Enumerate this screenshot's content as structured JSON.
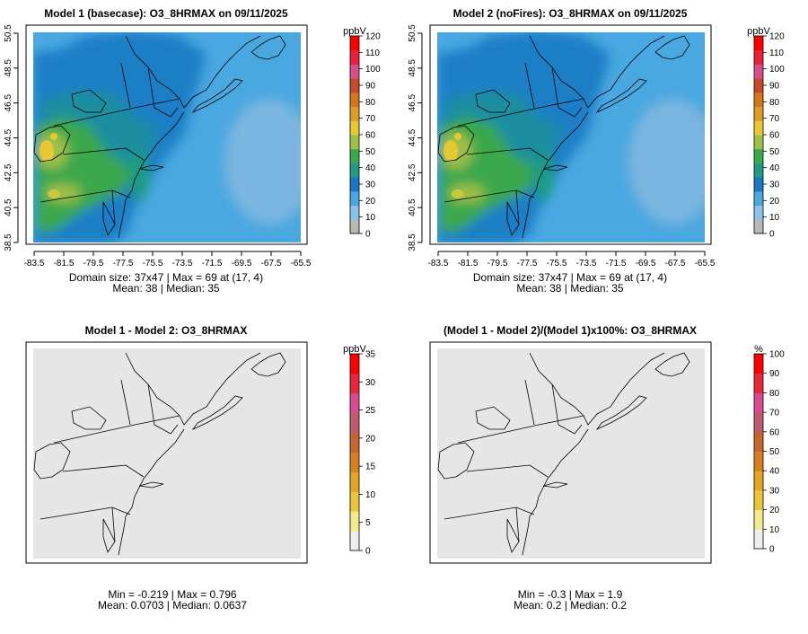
{
  "panels": [
    {
      "id": "m1",
      "title": "Model 1 (basecase): O3_8HRMAX on 09/11/2025",
      "kind": "field",
      "stats_line1": "Domain size: 37x47 | Max = 69 at (17, 4)",
      "stats_line2": "Mean: 38 |  Median: 35"
    },
    {
      "id": "m2",
      "title": "Model 2 (noFires): O3_8HRMAX on 09/11/2025",
      "kind": "field",
      "stats_line1": "Domain size: 37x47 | Max = 69 at (17, 4)",
      "stats_line2": "Mean: 38 |  Median: 35"
    },
    {
      "id": "diff",
      "title": "Model 1 - Model 2: O3_8HRMAX",
      "kind": "blank",
      "stats_line1": "Min = -0.219 | Max = 0.796",
      "stats_line2": "Mean: 0.0703 |  Median: 0.0637"
    },
    {
      "id": "pct",
      "title": "(Model 1 - Model 2)/(Model 1)x100%: O3_8HRMAX",
      "kind": "blank",
      "stats_line1": "Min = -0.3 | Max = 1.9",
      "stats_line2": "Mean: 0.2 |  Median: 0.2"
    }
  ],
  "axes": {
    "lon_ticks": [
      "-83.5",
      "-81.5",
      "-79.5",
      "-77.5",
      "-75.5",
      "-73.5",
      "-71.5",
      "-69.5",
      "-67.5",
      "-65.5"
    ],
    "lat_ticks": [
      "38.5",
      "40.5",
      "42.5",
      "44.5",
      "46.5",
      "48.5",
      "50.5"
    ]
  },
  "colorbars": [
    {
      "id": "cb1",
      "unit": "ppbV",
      "ticks": [
        "0",
        "10",
        "20",
        "30",
        "40",
        "50",
        "60",
        "70",
        "80",
        "90",
        "100",
        "110",
        "120"
      ],
      "palette": [
        "#b8b8b8",
        "#8dc2e8",
        "#4aa8e0",
        "#1777c0",
        "#1f9a84",
        "#3aa84c",
        "#a0c04a",
        "#e6c833",
        "#e09b22",
        "#d8741a",
        "#c64a2a",
        "#d44e88",
        "#e8203a",
        "#ff0000"
      ]
    },
    {
      "id": "cb2",
      "unit": "ppbV",
      "ticks": [
        "0",
        "10",
        "20",
        "30",
        "40",
        "50",
        "60",
        "70",
        "80",
        "90",
        "100",
        "110",
        "120"
      ],
      "palette": [
        "#b8b8b8",
        "#8dc2e8",
        "#4aa8e0",
        "#1777c0",
        "#1f9a84",
        "#3aa84c",
        "#a0c04a",
        "#e6c833",
        "#e09b22",
        "#d8741a",
        "#c64a2a",
        "#d44e88",
        "#e8203a",
        "#ff0000"
      ]
    },
    {
      "id": "cb3",
      "unit": "ppbV",
      "ticks": [
        "0",
        "5",
        "10",
        "15",
        "20",
        "25",
        "30",
        "35"
      ],
      "palette": [
        "#eeeeee",
        "#f3ea8c",
        "#eac53a",
        "#e3a524",
        "#d97f1f",
        "#c6652d",
        "#c05a6f",
        "#d84a92",
        "#e8283a",
        "#ff0000"
      ]
    },
    {
      "id": "cb4",
      "unit": "%",
      "ticks": [
        "0",
        "10",
        "20",
        "30",
        "40",
        "50",
        "60",
        "70",
        "80",
        "90",
        "100"
      ],
      "palette": [
        "#eeeeee",
        "#f3ea8c",
        "#eac53a",
        "#e3a524",
        "#d97f1f",
        "#c6652d",
        "#c05a6f",
        "#d84a92",
        "#e8283a",
        "#ff0000"
      ]
    }
  ],
  "colors": {
    "blank_fill": "#e6e6e6",
    "ocean_fill": "#4aa8e0",
    "land_fill": "#1f7fc6",
    "coast": "#000000"
  }
}
